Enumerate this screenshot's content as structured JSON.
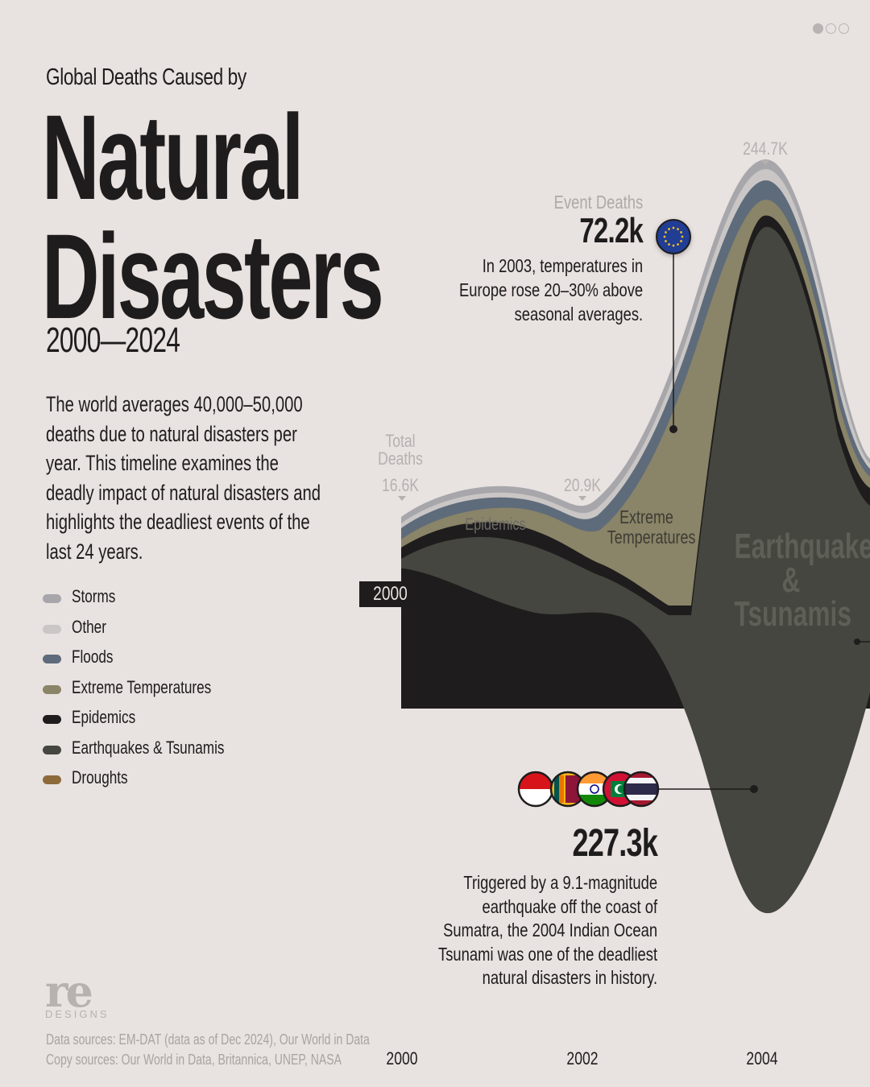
{
  "header": {
    "subtitle": "Global Deaths Caused by",
    "title_line1": "Natural",
    "title_line2": "Disasters",
    "years": "2000—2024",
    "intro": "The world averages 40,000–50,000 deaths due to natural disasters per year. This timeline examines the deadly impact of natural disasters and highlights the deadliest events of the last 24 years."
  },
  "pagination": {
    "count": 3,
    "active": 0
  },
  "legend": [
    {
      "label": "Storms",
      "color": "#a7a7ab"
    },
    {
      "label": "Other",
      "color": "#c9c6c5"
    },
    {
      "label": "Floods",
      "color": "#5e6b7a"
    },
    {
      "label": "Extreme Temperatures",
      "color": "#8a8468"
    },
    {
      "label": "Epidemics",
      "color": "#1e1c1c"
    },
    {
      "label": "Earthquakes & Tsunamis",
      "color": "#45463f"
    },
    {
      "label": "Droughts",
      "color": "#8d6a3a"
    }
  ],
  "chart_data": {
    "type": "area",
    "x_ticks": [
      "2000",
      "2002",
      "2004"
    ],
    "start_tag": "2000",
    "total_deaths_label": "Total Deaths",
    "totals": [
      {
        "year": 2000,
        "label": "16.6K"
      },
      {
        "year": 2002,
        "label": "20.9K"
      },
      {
        "year": 2004,
        "label": "244.7K"
      }
    ],
    "stream_labels": {
      "epidemics": "Epidemics",
      "extreme_temperatures": "Extreme Temperatures",
      "earthquakes": "Earthquakes & Tsunamis"
    },
    "annotations": [
      {
        "header": "Event Deaths",
        "value": "72.2k",
        "text": [
          "In 2003, temperatures in",
          "Europe rose 20–30% above",
          "seasonal averages."
        ],
        "flag": "european-union-flag-icon"
      },
      {
        "value": "227.3k",
        "text": [
          "Triggered by a 9.1-magnitude",
          "earthquake off the coast of",
          "Sumatra, the 2004 Indian Ocean",
          "Tsunami was one of the deadliest",
          "natural disasters in history."
        ],
        "flags": [
          "indonesia-flag-icon",
          "sri-lanka-flag-icon",
          "india-flag-icon",
          "maldives-flag-icon",
          "thailand-flag-icon"
        ]
      }
    ]
  },
  "footer": {
    "logo": "re",
    "logo_sub": "DESIGNS",
    "data_sources": "Data sources: EM-DAT (data as of Dec 2024), Our World in Data",
    "copy_sources": "Copy sources: Our World in Data, Britannica, UNEP, NASA"
  }
}
